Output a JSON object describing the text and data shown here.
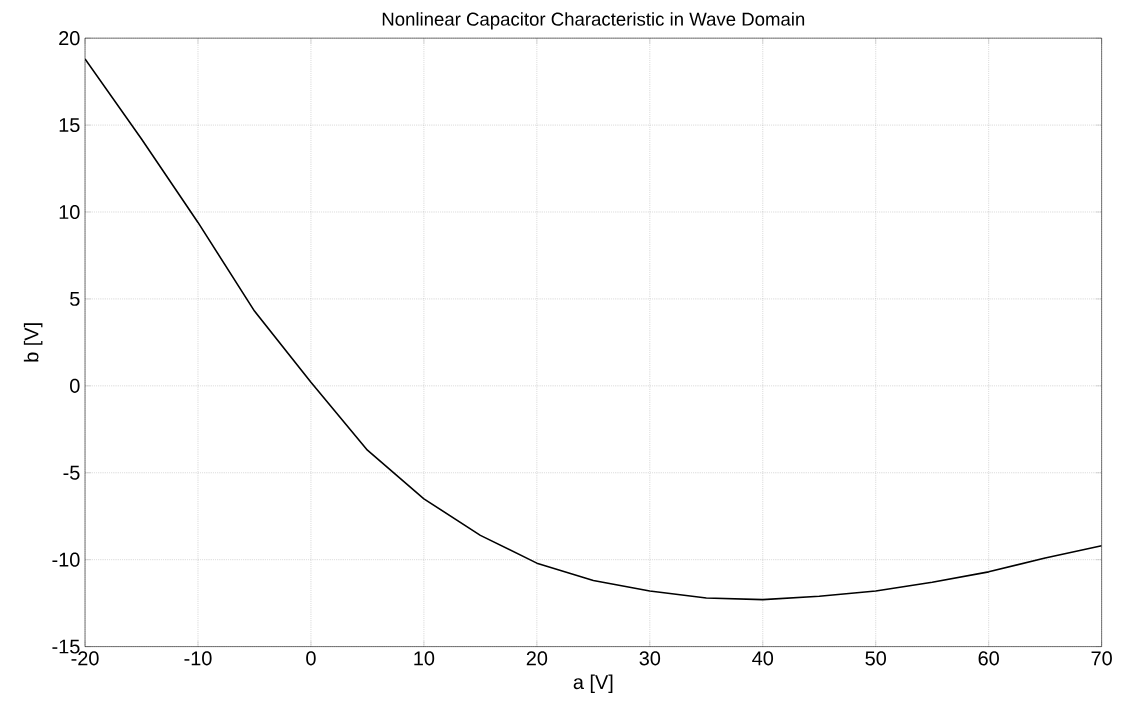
{
  "chart_data": {
    "type": "line",
    "title": "Nonlinear Capacitor Characteristic in Wave Domain",
    "xlabel": "a [V]",
    "ylabel": "b [V]",
    "x": [
      -20,
      -15,
      -10,
      -5,
      0,
      5,
      10,
      15,
      20,
      25,
      30,
      35,
      40,
      45,
      50,
      55,
      60,
      65,
      70
    ],
    "values": [
      18.8,
      14.2,
      9.4,
      4.3,
      0.2,
      -3.7,
      -6.5,
      -8.6,
      -10.2,
      -11.2,
      -11.8,
      -12.2,
      -12.3,
      -12.1,
      -11.8,
      -11.3,
      -10.7,
      -9.9,
      -9.2
    ],
    "color": "#000000",
    "xlim": [
      -20,
      70
    ],
    "ylim": [
      -15,
      20
    ],
    "xticks": [
      -20,
      -10,
      0,
      10,
      20,
      30,
      40,
      50,
      60,
      70
    ],
    "yticks": [
      -15,
      -10,
      -5,
      0,
      5,
      10,
      15,
      20
    ],
    "grid": true
  }
}
